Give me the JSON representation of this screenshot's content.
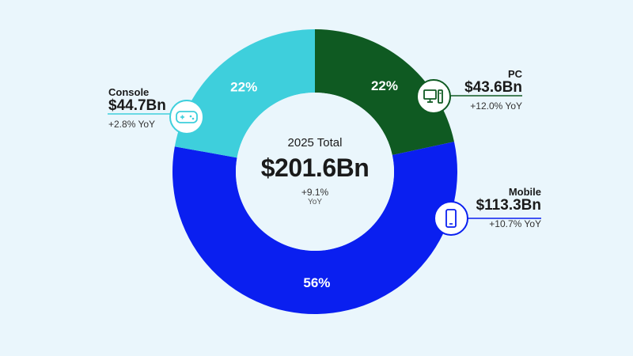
{
  "chart_data": {
    "type": "donut",
    "center": {
      "label": "2025 Total",
      "value": "$201.6Bn",
      "change": "+9.1%",
      "change_unit": "YoY"
    },
    "segments": [
      {
        "name": "PC",
        "value": 43.6,
        "amount": "$43.6Bn",
        "percent_label": "22%",
        "change": "+12.0% YoY",
        "color": "#0f5a22",
        "icon": "pc-icon"
      },
      {
        "name": "Mobile",
        "value": 113.3,
        "amount": "$113.3Bn",
        "percent_label": "56%",
        "change": "+10.7% YoY",
        "color": "#0a1ff0",
        "icon": "mobile-icon"
      },
      {
        "name": "Console",
        "value": 44.7,
        "amount": "$44.7Bn",
        "percent_label": "22%",
        "change": "+2.8% YoY",
        "color": "#3ecfdc",
        "icon": "gamepad-icon"
      }
    ]
  },
  "colors": {
    "background": "#eaf6fc",
    "center": "#eaf6fc",
    "label_text": "#ffffff"
  }
}
